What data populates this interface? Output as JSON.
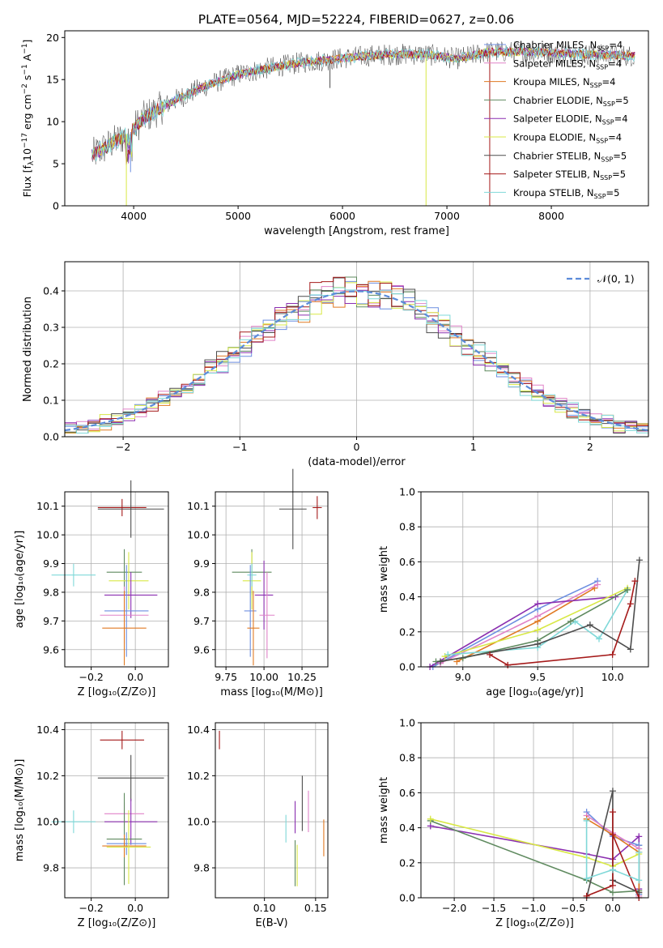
{
  "figure": {
    "title": "PLATE=0564, MJD=52224, FIBERID=0627, z=0.06"
  },
  "chart_data": [
    {
      "id": "spectrum",
      "type": "line",
      "xlabel": "wavelength [Angstrom, rest frame]",
      "ylabel_parts": [
        "Flux [f",
        "λ",
        "10",
        "−17",
        " erg cm",
        "−2",
        " s",
        "−1",
        " A",
        "−1",
        "]"
      ],
      "xlim": [
        3340,
        8930
      ],
      "ylim": [
        0,
        20.8
      ],
      "xticks": [
        4000,
        5000,
        6000,
        7000,
        8000
      ],
      "yticks": [
        0,
        5,
        10,
        15,
        20
      ],
      "grid": false,
      "legend_position": "right",
      "continuum": [
        [
          3600,
          6.0
        ],
        [
          3800,
          7.5
        ],
        [
          3950,
          8.5
        ],
        [
          4100,
          10.5
        ],
        [
          4400,
          12.6
        ],
        [
          4700,
          14.3
        ],
        [
          5000,
          15.6
        ],
        [
          5300,
          16.4
        ],
        [
          5600,
          17.0
        ],
        [
          5900,
          17.4
        ],
        [
          6200,
          17.8
        ],
        [
          6500,
          18.0
        ],
        [
          6800,
          18.0
        ],
        [
          7100,
          17.5
        ],
        [
          7400,
          18.3
        ],
        [
          7700,
          18.3
        ],
        [
          8000,
          18.2
        ],
        [
          8300,
          18.0
        ],
        [
          8600,
          17.9
        ],
        [
          8800,
          17.8
        ]
      ],
      "spikes": [
        {
          "x": 3930,
          "y": 0.0,
          "series": 5
        },
        {
          "x": 3970,
          "y": 4.0,
          "series": 0
        },
        {
          "x": 5880,
          "y": 14.0,
          "series": 6
        },
        {
          "x": 6800,
          "y": 0.0,
          "series": 5
        },
        {
          "x": 7410,
          "y": 0.0,
          "series": 7
        }
      ],
      "series": [
        {
          "name_main": "Chabrier MILES, N",
          "name_sub": "SSP",
          "name_tail": "=4",
          "color": "#6c8ee0"
        },
        {
          "name_main": "Salpeter MILES, N",
          "name_sub": "SSP",
          "name_tail": "=4",
          "color": "#e082c8"
        },
        {
          "name_main": "Kroupa MILES, N",
          "name_sub": "SSP",
          "name_tail": "=4",
          "color": "#e07a23"
        },
        {
          "name_main": "Chabrier ELODIE, N",
          "name_sub": "SSP",
          "name_tail": "=5",
          "color": "#5f8a5f"
        },
        {
          "name_main": "Salpeter ELODIE, N",
          "name_sub": "SSP",
          "name_tail": "=4",
          "color": "#8b2fb0"
        },
        {
          "name_main": "Kroupa ELODIE, N",
          "name_sub": "SSP",
          "name_tail": "=4",
          "color": "#d8e845"
        },
        {
          "name_main": "Chabrier STELIB, N",
          "name_sub": "SSP",
          "name_tail": "=5",
          "color": "#4d4d4d"
        },
        {
          "name_main": "Salpeter STELIB, N",
          "name_sub": "SSP",
          "name_tail": "=5",
          "color": "#a51a1a"
        },
        {
          "name_main": "Kroupa STELIB, N",
          "name_sub": "SSP",
          "name_tail": "=5",
          "color": "#7fd8d8"
        }
      ]
    },
    {
      "id": "residuals",
      "type": "histogram",
      "xlabel": "(data-model)/error",
      "ylabel": "Normed distribution",
      "xlim": [
        -2.5,
        2.5
      ],
      "ylim": [
        0,
        0.48
      ],
      "xticks": [
        -2,
        -1,
        0,
        1,
        2
      ],
      "yticks": [
        0.0,
        0.1,
        0.2,
        0.3,
        0.4
      ],
      "ytick_labels": [
        "0.0",
        "0.1",
        "0.2",
        "0.3",
        "0.4"
      ],
      "grid": true,
      "legend_position": "top-right",
      "reference_label": "𝒩(0, 1)",
      "reference_color": "#5b8bd9"
    },
    {
      "id": "age-vs-Z",
      "type": "errorbar",
      "xlabel": "Z [log₁₀(Z/Z⊙)]",
      "ylabel": "age  [log₁₀(age/yr)]",
      "xlim": [
        -0.32,
        0.15
      ],
      "ylim": [
        9.54,
        10.15
      ],
      "xticks": [
        -0.2,
        0.0
      ],
      "xtick_labels": [
        "−0.2",
        "0.0"
      ],
      "yticks": [
        9.6,
        9.7,
        9.8,
        9.9,
        10.0,
        10.1
      ],
      "ytick_labels": [
        "9.6",
        "9.7",
        "9.8",
        "9.9",
        "10.0",
        "10.1"
      ],
      "grid": true,
      "points": [
        {
          "x": -0.06,
          "y": 10.095,
          "xerr": 0.11,
          "yerr": 0.03,
          "series": 7
        },
        {
          "x": -0.02,
          "y": 10.09,
          "xerr": 0.15,
          "yerr": 0.1,
          "series": 6
        },
        {
          "x": -0.05,
          "y": 9.87,
          "xerr": 0.08,
          "yerr": 0.08,
          "series": 3
        },
        {
          "x": -0.03,
          "y": 9.84,
          "xerr": 0.09,
          "yerr": 0.1,
          "series": 5
        },
        {
          "x": -0.28,
          "y": 9.86,
          "xerr": 0.1,
          "yerr": 0.0,
          "series": 8
        },
        {
          "x": -0.02,
          "y": 9.79,
          "xerr": 0.12,
          "yerr": 0.08,
          "series": 4
        },
        {
          "x": -0.04,
          "y": 9.735,
          "xerr": 0.1,
          "yerr": 0.16,
          "series": 0
        },
        {
          "x": -0.05,
          "y": 9.72,
          "xerr": 0.11,
          "yerr": 0.1,
          "series": 1
        },
        {
          "x": -0.05,
          "y": 9.675,
          "xerr": 0.1,
          "yerr": 0.13,
          "series": 2
        }
      ]
    },
    {
      "id": "age-vs-mass",
      "type": "errorbar",
      "xlabel": "mass [log₁₀(M/M⊙)]",
      "ylabel": "",
      "xlim": [
        9.68,
        10.42
      ],
      "ylim": [
        9.54,
        10.15
      ],
      "xticks": [
        9.75,
        10.0,
        10.25
      ],
      "xtick_labels": [
        "9.75",
        "10.00",
        "10.25"
      ],
      "yticks": [
        9.6,
        9.7,
        9.8,
        9.9,
        10.0,
        10.1
      ],
      "ytick_labels": [
        "9.6",
        "9.7",
        "9.8",
        "9.9",
        "10.0",
        "10.1"
      ],
      "grid": true,
      "points": [
        {
          "x": 10.35,
          "y": 10.095,
          "xerr": 0.03,
          "yerr": 0.04,
          "series": 7
        },
        {
          "x": 10.19,
          "y": 10.09,
          "xerr": 0.09,
          "yerr": 0.14,
          "series": 6
        },
        {
          "x": 9.92,
          "y": 9.87,
          "xerr": 0.13,
          "yerr": 0.08,
          "series": 3
        },
        {
          "x": 9.92,
          "y": 9.84,
          "xerr": 0.06,
          "yerr": 0.1,
          "series": 5
        },
        {
          "x": 9.92,
          "y": 9.86,
          "xerr": 0.03,
          "yerr": 0.0,
          "series": 8
        },
        {
          "x": 10.0,
          "y": 9.79,
          "xerr": 0.06,
          "yerr": 0.12,
          "series": 4
        },
        {
          "x": 9.91,
          "y": 9.735,
          "xerr": 0.04,
          "yerr": 0.16,
          "series": 0
        },
        {
          "x": 10.02,
          "y": 9.72,
          "xerr": 0.05,
          "yerr": 0.15,
          "series": 1
        },
        {
          "x": 9.93,
          "y": 9.675,
          "xerr": 0.04,
          "yerr": 0.13,
          "series": 2
        }
      ]
    },
    {
      "id": "weight-vs-age",
      "type": "line",
      "xlabel": "age  [log₁₀(age/yr)]",
      "ylabel": "mass weight",
      "xlim": [
        8.72,
        10.24
      ],
      "ylim": [
        0,
        1.0
      ],
      "xticks": [
        9.0,
        9.5,
        10.0
      ],
      "xtick_labels": [
        "9.0",
        "9.5",
        "10.0"
      ],
      "yticks": [
        0.0,
        0.2,
        0.4,
        0.6,
        0.8,
        1.0
      ],
      "ytick_labels": [
        "0.0",
        "0.2",
        "0.4",
        "0.6",
        "0.8",
        "1.0"
      ],
      "grid": true,
      "lines": [
        {
          "series": 2,
          "points": [
            [
              8.96,
              0.03
            ],
            [
              9.5,
              0.26
            ],
            [
              9.88,
              0.45
            ]
          ]
        },
        {
          "series": 0,
          "points": [
            [
              8.8,
              0.0
            ],
            [
              9.5,
              0.33
            ],
            [
              9.9,
              0.49
            ]
          ]
        },
        {
          "series": 1,
          "points": [
            [
              8.85,
              0.02
            ],
            [
              9.5,
              0.29
            ],
            [
              9.9,
              0.47
            ]
          ]
        },
        {
          "series": 4,
          "points": [
            [
              8.78,
              0.0
            ],
            [
              9.5,
              0.36
            ],
            [
              10.02,
              0.4
            ]
          ]
        },
        {
          "series": 5,
          "points": [
            [
              8.88,
              0.06
            ],
            [
              9.5,
              0.21
            ],
            [
              10.1,
              0.45
            ]
          ]
        },
        {
          "series": 8,
          "points": [
            [
              8.9,
              0.07
            ],
            [
              9.5,
              0.11
            ],
            [
              9.75,
              0.26
            ],
            [
              9.91,
              0.16
            ],
            [
              10.1,
              0.44
            ]
          ]
        },
        {
          "series": 3,
          "points": [
            [
              8.82,
              0.03
            ],
            [
              9.0,
              0.05
            ],
            [
              9.5,
              0.15
            ],
            [
              9.72,
              0.26
            ],
            [
              10.1,
              0.44
            ]
          ]
        },
        {
          "series": 6,
          "points": [
            [
              8.85,
              0.03
            ],
            [
              9.5,
              0.13
            ],
            [
              9.85,
              0.24
            ],
            [
              10.12,
              0.1
            ],
            [
              10.18,
              0.61
            ]
          ]
        },
        {
          "series": 7,
          "points": [
            [
              9.18,
              0.07
            ],
            [
              9.3,
              0.01
            ],
            [
              10.0,
              0.07
            ],
            [
              10.12,
              0.36
            ],
            [
              10.15,
              0.49
            ]
          ]
        }
      ]
    },
    {
      "id": "mass-vs-Z",
      "type": "errorbar",
      "xlabel": "Z [log₁₀(Z/Z⊙)]",
      "ylabel": "mass [log₁₀(M/M⊙)]",
      "xlim": [
        -0.32,
        0.15
      ],
      "ylim": [
        9.67,
        10.43
      ],
      "xticks": [
        -0.2,
        0.0
      ],
      "xtick_labels": [
        "−0.2",
        "0.0"
      ],
      "yticks": [
        9.8,
        10.0,
        10.2,
        10.4
      ],
      "ytick_labels": [
        "9.8",
        "10.0",
        "10.2",
        "10.4"
      ],
      "grid": true,
      "points": [
        {
          "x": -0.06,
          "y": 10.355,
          "xerr": 0.1,
          "yerr": 0.04,
          "series": 7
        },
        {
          "x": -0.02,
          "y": 10.19,
          "xerr": 0.15,
          "yerr": 0.1,
          "series": 6
        },
        {
          "x": -0.05,
          "y": 10.035,
          "xerr": 0.09,
          "yerr": 0.0,
          "series": 1
        },
        {
          "x": -0.02,
          "y": 10.0,
          "xerr": 0.12,
          "yerr": 0.1,
          "series": 4
        },
        {
          "x": -0.28,
          "y": 10.0,
          "xerr": 0.1,
          "yerr": 0.0,
          "series": 8
        },
        {
          "x": -0.05,
          "y": 9.925,
          "xerr": 0.08,
          "yerr": 0.2,
          "series": 3
        },
        {
          "x": -0.04,
          "y": 9.905,
          "xerr": 0.09,
          "yerr": 0.0,
          "series": 0
        },
        {
          "x": -0.05,
          "y": 9.895,
          "xerr": 0.1,
          "yerr": 0.0,
          "series": 2
        },
        {
          "x": -0.03,
          "y": 9.89,
          "xerr": 0.1,
          "yerr": 0.16,
          "series": 5
        }
      ]
    },
    {
      "id": "mass-vs-ebv",
      "type": "errorbar",
      "xlabel": "E(B-V)",
      "ylabel": "",
      "xlim": [
        0.052,
        0.162
      ],
      "ylim": [
        9.67,
        10.43
      ],
      "xticks": [
        0.1,
        0.15
      ],
      "xtick_labels": [
        "0.10",
        "0.15"
      ],
      "yticks": [
        9.8,
        10.0,
        10.2,
        10.4
      ],
      "ytick_labels": [
        "9.8",
        "10.0",
        "10.2",
        "10.4"
      ],
      "grid": true,
      "points": [
        {
          "x": 0.056,
          "y": 10.355,
          "xerr": 0.0,
          "yerr": 0.04,
          "series": 7
        },
        {
          "x": 0.137,
          "y": 10.08,
          "xerr": 0.0,
          "yerr": 0.12,
          "series": 6
        },
        {
          "x": 0.143,
          "y": 10.045,
          "xerr": 0.0,
          "yerr": 0.09,
          "series": 1
        },
        {
          "x": 0.121,
          "y": 9.97,
          "xerr": 0.0,
          "yerr": 0.06,
          "series": 8
        },
        {
          "x": 0.13,
          "y": 10.02,
          "xerr": 0.0,
          "yerr": 0.07,
          "series": 4
        },
        {
          "x": 0.158,
          "y": 9.93,
          "xerr": 0.0,
          "yerr": 0.08,
          "series": 2
        },
        {
          "x": 0.132,
          "y": 9.81,
          "xerr": 0.0,
          "yerr": 0.09,
          "series": 5
        },
        {
          "x": 0.13,
          "y": 9.82,
          "xerr": 0.0,
          "yerr": 0.1,
          "series": 3
        }
      ]
    },
    {
      "id": "weight-vs-Z",
      "type": "line",
      "xlabel": "Z [log₁₀(Z/Z⊙)]",
      "ylabel": "mass weight",
      "xlim": [
        -2.42,
        0.45
      ],
      "ylim": [
        0,
        1.0
      ],
      "xticks": [
        -2.0,
        -1.5,
        -1.0,
        -0.5,
        0.0
      ],
      "xtick_labels": [
        "−2.0",
        "−1.5",
        "−1.0",
        "−0.5",
        "0.0"
      ],
      "yticks": [
        0.0,
        0.2,
        0.4,
        0.6,
        0.8,
        1.0
      ],
      "ytick_labels": [
        "0.0",
        "0.2",
        "0.4",
        "0.6",
        "0.8",
        "1.0"
      ],
      "grid": true,
      "lines": [
        {
          "series": 4,
          "points": [
            [
              -2.3,
              0.41
            ],
            [
              -0.33,
              0.25
            ],
            [
              0.0,
              0.22
            ],
            [
              0.33,
              0.35
            ],
            [
              0.33,
              0.05
            ]
          ]
        },
        {
          "series": 3,
          "points": [
            [
              -2.3,
              0.44
            ],
            [
              -0.33,
              0.1
            ],
            [
              0.0,
              0.03
            ],
            [
              0.33,
              0.04
            ],
            [
              0.33,
              0.3
            ]
          ]
        },
        {
          "series": 5,
          "points": [
            [
              -2.3,
              0.45
            ],
            [
              -0.33,
              0.23
            ],
            [
              0.0,
              0.18
            ],
            [
              0.33,
              0.25
            ],
            [
              0.33,
              0.02
            ]
          ]
        },
        {
          "series": 0,
          "points": [
            [
              -0.33,
              0.49
            ],
            [
              0.0,
              0.35
            ],
            [
              0.33,
              0.3
            ],
            [
              0.33,
              0.02
            ]
          ]
        },
        {
          "series": 1,
          "points": [
            [
              -0.33,
              0.47
            ],
            [
              0.0,
              0.37
            ],
            [
              0.33,
              0.28
            ],
            [
              0.33,
              0.01
            ]
          ]
        },
        {
          "series": 2,
          "points": [
            [
              -0.33,
              0.45
            ],
            [
              0.0,
              0.36
            ],
            [
              0.33,
              0.26
            ],
            [
              0.33,
              0.03
            ]
          ]
        },
        {
          "series": 6,
          "points": [
            [
              -0.33,
              0.0
            ],
            [
              0.0,
              0.61
            ],
            [
              0.0,
              0.1
            ],
            [
              0.33,
              0.03
            ]
          ]
        },
        {
          "series": 7,
          "points": [
            [
              -0.33,
              0.01
            ],
            [
              0.0,
              0.07
            ],
            [
              0.0,
              0.49
            ],
            [
              0.0,
              0.36
            ],
            [
              0.33,
              0.0
            ]
          ]
        },
        {
          "series": 8,
          "points": [
            [
              -0.33,
              0.44
            ],
            [
              -0.33,
              0.11
            ],
            [
              0.0,
              0.16
            ],
            [
              0.33,
              0.1
            ],
            [
              0.33,
              0.26
            ]
          ]
        }
      ]
    }
  ]
}
